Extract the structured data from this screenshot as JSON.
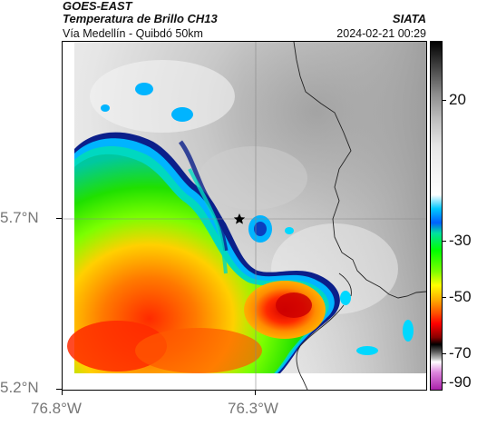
{
  "header": {
    "title": "GOES-EAST",
    "subtitle": "Temperatura de Brillo CH13",
    "location": "Vía Medellín - Quibdó 50km",
    "source": "SIATA",
    "datetime": "2024-02-21 00:29"
  },
  "axes": {
    "y_labels": [
      "5.7°N",
      "5.2°N"
    ],
    "x_labels": [
      "76.8°W",
      "76.3°W"
    ]
  },
  "colorbar": {
    "tick_labels": [
      "20",
      "-30",
      "-50",
      "-70",
      "-90"
    ],
    "unit": "",
    "colors": [
      "#000000",
      "#ffffff",
      "#00b7ff",
      "#00ff00",
      "#ffff00",
      "#ff0000",
      "#550000",
      "#888888",
      "#cc33cc"
    ]
  },
  "map": {
    "marker_icon": "star-icon"
  }
}
